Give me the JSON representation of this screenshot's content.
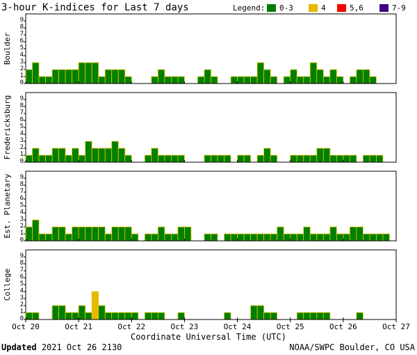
{
  "chart_data": {
    "type": "bar",
    "title": "3-hour K-indices for Last 7 days",
    "legend": {
      "label": "Legend:",
      "placement": "top-right",
      "entries": [
        {
          "label": "0-3",
          "color": "#008000"
        },
        {
          "label": "4",
          "color": "#e8b800"
        },
        {
          "label": "5,6",
          "color": "#ff0000"
        },
        {
          "label": "7-9",
          "color": "#400080"
        }
      ]
    },
    "bar_outline_color": "#e8c800",
    "ylim": [
      0,
      9
    ],
    "yticks": [
      "0",
      "1",
      "2",
      "3",
      "4",
      "5",
      "6",
      "7",
      "8",
      "9"
    ],
    "x_tick_labels": [
      "Oct 20",
      "Oct 21",
      "Oct 22",
      "Oct 23",
      "Oct 24",
      "Oct 25",
      "Oct 26",
      "Oct 27"
    ],
    "xlabel": "Coordinate Universal Time (UTC)",
    "grid": false,
    "series": [
      {
        "name": "Boulder",
        "values": [
          2,
          3,
          1,
          1,
          2,
          2,
          2,
          2,
          3,
          3,
          3,
          1,
          2,
          2,
          2,
          1,
          0,
          0,
          0,
          1,
          2,
          1,
          1,
          1,
          0,
          0,
          1,
          2,
          1,
          0,
          0,
          1,
          1,
          1,
          1,
          3,
          2,
          1,
          0,
          1,
          2,
          1,
          1,
          3,
          2,
          1,
          2,
          1,
          0,
          1,
          2,
          2,
          1,
          0
        ]
      },
      {
        "name": "Fredericksburg",
        "values": [
          1,
          2,
          1,
          1,
          2,
          2,
          1,
          2,
          1,
          3,
          2,
          2,
          2,
          3,
          2,
          1,
          0,
          0,
          1,
          2,
          1,
          1,
          1,
          1,
          0,
          0,
          0,
          1,
          1,
          1,
          1,
          0,
          1,
          1,
          0,
          1,
          2,
          1,
          0,
          0,
          1,
          1,
          1,
          1,
          2,
          2,
          1,
          1,
          1,
          1,
          0,
          1,
          1,
          1,
          0,
          0
        ]
      },
      {
        "name": "Est. Planetary",
        "values": [
          2,
          3,
          1,
          1,
          2,
          2,
          1,
          2,
          2,
          2,
          2,
          2,
          1,
          2,
          2,
          2,
          1,
          0,
          1,
          1,
          2,
          1,
          1,
          2,
          2,
          0,
          0,
          1,
          1,
          0,
          1,
          1,
          1,
          1,
          1,
          1,
          1,
          1,
          2,
          1,
          1,
          1,
          2,
          1,
          1,
          1,
          2,
          1,
          1,
          2,
          2,
          1,
          1,
          1,
          1,
          0
        ]
      },
      {
        "name": "College",
        "values": [
          1,
          1,
          0,
          0,
          2,
          2,
          1,
          1,
          2,
          1,
          4,
          2,
          1,
          1,
          1,
          1,
          1,
          0,
          1,
          1,
          1,
          0,
          0,
          1,
          0,
          0,
          0,
          0,
          0,
          0,
          1,
          0,
          0,
          0,
          2,
          2,
          1,
          1,
          0,
          0,
          0,
          1,
          1,
          1,
          1,
          1,
          0,
          0,
          0,
          0,
          1,
          0,
          0,
          0,
          0,
          0
        ]
      }
    ]
  },
  "footer": {
    "updated_label": "Updated",
    "updated_time": "2021 Oct 26 2130",
    "source": "NOAA/SWPC Boulder, CO USA"
  }
}
